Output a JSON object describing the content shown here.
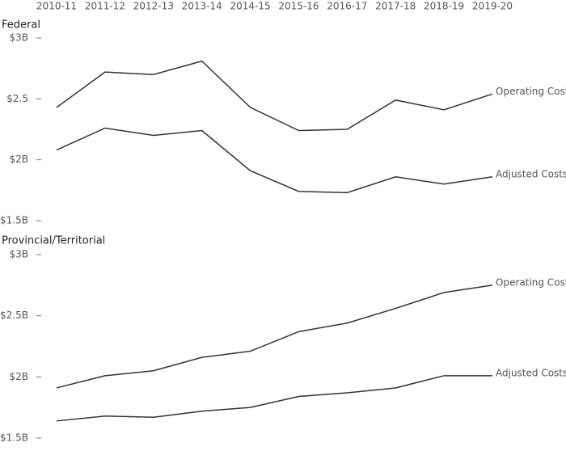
{
  "chart_data": [
    {
      "type": "line",
      "title": "Federal",
      "categories": [
        "2010-11",
        "2011-12",
        "2012-13",
        "2013-14",
        "2014-15",
        "2015-16",
        "2016-17",
        "2017-18",
        "2018-19",
        "2019-20"
      ],
      "series": [
        {
          "name": "Operating Costs",
          "color": "#2e3440",
          "values": [
            2.43,
            2.72,
            2.7,
            2.81,
            2.43,
            2.24,
            2.25,
            2.49,
            2.41,
            2.54
          ]
        },
        {
          "name": "Adjusted Costs",
          "color": "#2e3440",
          "values": [
            2.08,
            2.26,
            2.2,
            2.24,
            1.91,
            1.74,
            1.73,
            1.86,
            1.8,
            1.86
          ]
        }
      ],
      "ylim": [
        1.5,
        3
      ],
      "yticks": [
        {
          "value": 1.5,
          "label": "$1.5B"
        },
        {
          "value": 2,
          "label": "$2B"
        },
        {
          "value": 2.5,
          "label": "$2.5"
        },
        {
          "value": 3,
          "label": "$3B"
        }
      ]
    },
    {
      "type": "line",
      "title": "Provincial/Territorial",
      "series": [
        {
          "name": "Operating Costs",
          "color": "#2e3440",
          "values": [
            1.91,
            2.01,
            2.05,
            2.16,
            2.21,
            2.37,
            2.44,
            2.56,
            2.69,
            2.75
          ]
        },
        {
          "name": "Adjusted Costs",
          "color": "#2e3440",
          "values": [
            1.64,
            1.68,
            1.67,
            1.72,
            1.75,
            1.84,
            1.87,
            1.91,
            2.01,
            2.01
          ]
        }
      ],
      "ylim": [
        1.5,
        3
      ],
      "yticks": [
        {
          "value": 1.5,
          "label": "$1.5B"
        },
        {
          "value": 2,
          "label": "$2B"
        },
        {
          "value": 2.5,
          "label": "$2.5B"
        },
        {
          "value": 3,
          "label": "$3B"
        }
      ]
    }
  ]
}
